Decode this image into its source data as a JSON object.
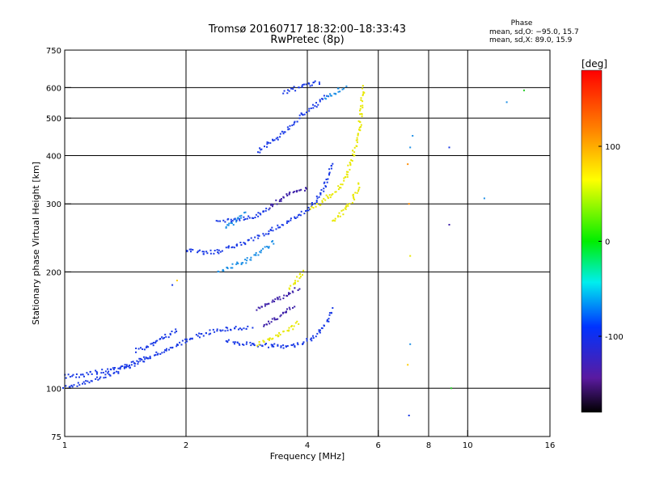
{
  "header": {
    "title": "Tromsø 20160717 18:32:00–18:33:43",
    "subtitle": "RwPretec (8p)",
    "phase_heading": "Phase",
    "phase_o": "mean, sd,O: −95.0, 15.7",
    "phase_x": "mean, sd,X:  89.0, 15.9"
  },
  "chart_data": {
    "type": "scatter",
    "title": "Tromsø 20160717 18:32:00–18:33:43",
    "subtitle": "RwPretec (8p)",
    "xlabel": "Frequency [MHz]",
    "ylabel": "Stationary phase Virtual Height [km]",
    "x_scale": "log",
    "y_scale": "log",
    "xlim": [
      1,
      16
    ],
    "ylim": [
      75,
      750
    ],
    "x_ticks": [
      1,
      2,
      4,
      6,
      8,
      10,
      16
    ],
    "x_tick_labels": [
      "1",
      "2",
      "4",
      "6",
      "8",
      "10",
      "16"
    ],
    "y_ticks": [
      75,
      100,
      200,
      300,
      400,
      500,
      600,
      750
    ],
    "y_tick_labels": [
      "75",
      "100",
      "200",
      "300",
      "400",
      "500",
      "600",
      "750"
    ],
    "grid": true,
    "colorbar": {
      "label": "[deg]",
      "range": [
        -180,
        180
      ],
      "ticks": [
        100,
        0,
        -100
      ],
      "tick_labels": [
        "100",
        "0",
        "-100"
      ]
    },
    "series": [
      {
        "color": "#1a3ae6",
        "phase": -95,
        "tracks": [
          {
            "x": [
              1.0,
              1.15,
              1.3,
              1.45,
              1.6,
              1.75,
              1.9,
              2.0,
              2.15,
              2.3,
              2.5,
              2.7,
              2.9
            ],
            "y": [
              100,
              104,
              109,
              114,
              119,
              124,
              129,
              133,
              137,
              140,
              142,
              143,
              144
            ]
          },
          {
            "x": [
              1.0,
              1.1,
              1.2,
              1.3,
              1.4,
              1.5,
              1.6
            ],
            "y": [
              107,
              108,
              110,
              112,
              114,
              117,
              120
            ]
          },
          {
            "x": [
              2.0,
              2.2,
              2.4,
              2.6,
              2.8,
              3.0,
              3.2,
              3.4,
              3.6,
              3.8,
              4.0,
              4.2,
              4.4,
              4.6
            ],
            "y": [
              228,
              224,
              226,
              232,
              238,
              246,
              254,
              262,
              270,
              279,
              290,
              305,
              330,
              380
            ]
          },
          {
            "x": [
              2.5,
              2.7,
              2.9,
              3.1,
              3.3,
              3.5,
              3.7,
              3.9,
              4.1,
              4.3,
              4.5,
              4.6
            ],
            "y": [
              133,
              131,
              130,
              129,
              129,
              128,
              129,
              131,
              134,
              140,
              150,
              160
            ]
          },
          {
            "x": [
              2.4,
              2.6,
              2.8,
              3.0,
              3.1,
              3.2
            ],
            "y": [
              270,
              272,
              275,
              280,
              286,
              292
            ]
          },
          {
            "x": [
              3.0,
              3.3,
              3.6,
              3.9,
              4.2,
              4.5
            ],
            "y": [
              410,
              440,
              470,
              510,
              540,
              575
            ]
          },
          {
            "x": [
              3.5,
              3.7,
              3.9,
              4.1,
              4.3
            ],
            "y": [
              580,
              595,
              605,
              612,
              620
            ]
          },
          {
            "x": [
              1.5,
              1.6,
              1.7,
              1.8,
              1.9
            ],
            "y": [
              125,
              128,
              132,
              137,
              142
            ]
          }
        ]
      },
      {
        "color": "#3c1fa8",
        "phase": -110,
        "tracks": [
          {
            "x": [
              3.0,
              3.2,
              3.4,
              3.6,
              3.8
            ],
            "y": [
              160,
              165,
              170,
              176,
              182
            ]
          },
          {
            "x": [
              3.1,
              3.3,
              3.5,
              3.7
            ],
            "y": [
              145,
              150,
              156,
              162
            ]
          },
          {
            "x": [
              3.2,
              3.4,
              3.6,
              3.8,
              4.0
            ],
            "y": [
              295,
              305,
              318,
              325,
              330
            ]
          }
        ]
      },
      {
        "color": "#1e90e6",
        "phase": -75,
        "tracks": [
          {
            "x": [
              2.4,
              2.55,
              2.7,
              2.85,
              3.0,
              3.15,
              3.3
            ],
            "y": [
              200,
              205,
              210,
              215,
              222,
              230,
              240
            ]
          },
          {
            "x": [
              2.5,
              2.6,
              2.7,
              2.8
            ],
            "y": [
              260,
              268,
              276,
              285
            ]
          },
          {
            "x": [
              4.4,
              4.6,
              4.8,
              5.0
            ],
            "y": [
              560,
              575,
              590,
              600
            ]
          }
        ]
      },
      {
        "color": "#e8e800",
        "phase": 89,
        "tracks": [
          {
            "x": [
              3.0,
              3.2,
              3.4,
              3.6,
              3.8
            ],
            "y": [
              130,
              133,
              137,
              142,
              148
            ]
          },
          {
            "x": [
              3.6,
              3.7,
              3.8,
              3.9
            ],
            "y": [
              180,
              186,
              192,
              200
            ]
          },
          {
            "x": [
              4.1,
              4.3,
              4.5,
              4.8,
              5.0,
              5.2,
              5.4,
              5.5
            ],
            "y": [
              292,
              300,
              312,
              330,
              355,
              400,
              480,
              600
            ]
          },
          {
            "x": [
              4.6,
              4.8,
              5.0,
              5.2,
              5.4
            ],
            "y": [
              270,
              280,
              292,
              310,
              340
            ]
          }
        ]
      }
    ],
    "scatter_points": [
      {
        "x": 7.1,
        "y": 380,
        "color": "#ff8c00"
      },
      {
        "x": 7.2,
        "y": 420,
        "color": "#1e90e6"
      },
      {
        "x": 7.3,
        "y": 450,
        "color": "#1e90e6"
      },
      {
        "x": 7.15,
        "y": 300,
        "color": "#ff8c00"
      },
      {
        "x": 7.2,
        "y": 220,
        "color": "#e8e800"
      },
      {
        "x": 7.2,
        "y": 130,
        "color": "#1e90e6"
      },
      {
        "x": 7.1,
        "y": 115,
        "color": "#ffcc00"
      },
      {
        "x": 7.15,
        "y": 85,
        "color": "#1a3ae6"
      },
      {
        "x": 9.0,
        "y": 420,
        "color": "#1a3ae6"
      },
      {
        "x": 9.0,
        "y": 265,
        "color": "#3c1fa8"
      },
      {
        "x": 9.1,
        "y": 100,
        "color": "#22cc22"
      },
      {
        "x": 11.0,
        "y": 310,
        "color": "#1e90e6"
      },
      {
        "x": 12.5,
        "y": 550,
        "color": "#1e90e6"
      },
      {
        "x": 13.8,
        "y": 590,
        "color": "#22cc22"
      },
      {
        "x": 1.9,
        "y": 190,
        "color": "#ffcc00"
      },
      {
        "x": 1.85,
        "y": 185,
        "color": "#1a3ae6"
      }
    ]
  }
}
